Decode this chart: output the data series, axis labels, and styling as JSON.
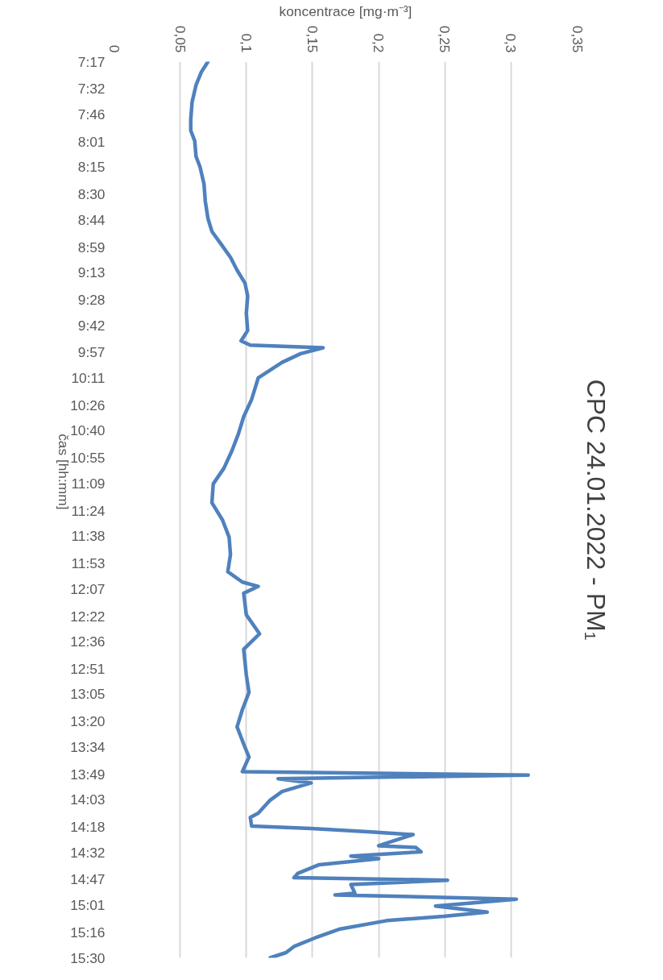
{
  "chart_data": {
    "type": "line",
    "title": "CPC 24.01.2022 - PM₁",
    "xlabel": "koncentrace [mg·m⁻³]",
    "ylabel": "čas [hh:mm]",
    "series": [
      {
        "color": "#4f81bd",
        "x": [
          0.071,
          0.066,
          0.062,
          0.059,
          0.058,
          0.058,
          0.061,
          0.062,
          0.065,
          0.068,
          0.069,
          0.071,
          0.074,
          0.081,
          0.088,
          0.093,
          0.099,
          0.101,
          0.1,
          0.101,
          0.096,
          0.103,
          0.158,
          0.141,
          0.127,
          0.109,
          0.104,
          0.098,
          0.094,
          0.089,
          0.083,
          0.075,
          0.074,
          0.082,
          0.087,
          0.088,
          0.086,
          0.097,
          0.109,
          0.098,
          0.1,
          0.11,
          0.098,
          0.1,
          0.102,
          0.097,
          0.093,
          0.098,
          0.102,
          0.097,
          0.313,
          0.124,
          0.149,
          0.127,
          0.118,
          0.109,
          0.103,
          0.104,
          0.149,
          0.194,
          0.226,
          0.2,
          0.228,
          0.232,
          0.179,
          0.2,
          0.155,
          0.139,
          0.136,
          0.252,
          0.179,
          0.182,
          0.167,
          0.304,
          0.243,
          0.282,
          0.249,
          0.206,
          0.17,
          0.152,
          0.136,
          0.13,
          0.118
        ],
        "values": [
          7.283,
          7.378,
          7.497,
          7.655,
          7.813,
          7.915,
          8.01,
          8.153,
          8.247,
          8.405,
          8.563,
          8.721,
          8.84,
          8.958,
          9.077,
          9.195,
          9.314,
          9.432,
          9.59,
          9.748,
          9.843,
          9.882,
          9.906,
          9.961,
          10.04,
          10.182,
          10.38,
          10.538,
          10.696,
          10.854,
          11.012,
          11.154,
          11.328,
          11.486,
          11.644,
          11.802,
          11.96,
          12.055,
          12.094,
          12.157,
          12.355,
          12.529,
          12.671,
          12.908,
          13.066,
          13.224,
          13.382,
          13.54,
          13.659,
          13.793,
          13.825,
          13.857,
          13.896,
          13.975,
          14.054,
          14.173,
          14.213,
          14.292,
          14.314,
          14.346,
          14.37,
          14.472,
          14.488,
          14.528,
          14.567,
          14.591,
          14.646,
          14.725,
          14.765,
          14.788,
          14.828,
          14.907,
          14.923,
          14.962,
          15.025,
          15.08,
          15.12,
          15.159,
          15.238,
          15.317,
          15.396,
          15.452,
          15.5
        ]
      }
    ],
    "ylim": [
      15.5,
      7.283
    ],
    "yticks": [
      {
        "value": 7.283,
        "label": "7:17"
      },
      {
        "value": 7.533,
        "label": "7:32"
      },
      {
        "value": 7.767,
        "label": "7:46"
      },
      {
        "value": 8.017,
        "label": "8:01"
      },
      {
        "value": 8.25,
        "label": "8:15"
      },
      {
        "value": 8.5,
        "label": "8:30"
      },
      {
        "value": 8.733,
        "label": "8:44"
      },
      {
        "value": 8.983,
        "label": "8:59"
      },
      {
        "value": 9.217,
        "label": "9:13"
      },
      {
        "value": 9.467,
        "label": "9:28"
      },
      {
        "value": 9.7,
        "label": "9:42"
      },
      {
        "value": 9.95,
        "label": "9:57"
      },
      {
        "value": 10.183,
        "label": "10:11"
      },
      {
        "value": 10.433,
        "label": "10:26"
      },
      {
        "value": 10.667,
        "label": "10:40"
      },
      {
        "value": 10.917,
        "label": "10:55"
      },
      {
        "value": 11.15,
        "label": "11:09"
      },
      {
        "value": 11.4,
        "label": "11:24"
      },
      {
        "value": 11.633,
        "label": "11:38"
      },
      {
        "value": 11.883,
        "label": "11:53"
      },
      {
        "value": 12.117,
        "label": "12:07"
      },
      {
        "value": 12.367,
        "label": "12:22"
      },
      {
        "value": 12.6,
        "label": "12:36"
      },
      {
        "value": 12.85,
        "label": "12:51"
      },
      {
        "value": 13.083,
        "label": "13:05"
      },
      {
        "value": 13.333,
        "label": "13:20"
      },
      {
        "value": 13.567,
        "label": "13:34"
      },
      {
        "value": 13.817,
        "label": "13:49"
      },
      {
        "value": 14.05,
        "label": "14:03"
      },
      {
        "value": 14.3,
        "label": "14:18"
      },
      {
        "value": 14.533,
        "label": "14:32"
      },
      {
        "value": 14.783,
        "label": "14:47"
      },
      {
        "value": 15.017,
        "label": "15:01"
      },
      {
        "value": 15.267,
        "label": "15:16"
      },
      {
        "value": 15.5,
        "label": "15:30"
      }
    ],
    "xlim": [
      0,
      0.35
    ],
    "xticks": [
      {
        "value": 0,
        "label": "0"
      },
      {
        "value": 0.05,
        "label": "0,05"
      },
      {
        "value": 0.1,
        "label": "0,1"
      },
      {
        "value": 0.15,
        "label": "0,15"
      },
      {
        "value": 0.2,
        "label": "0,2"
      },
      {
        "value": 0.25,
        "label": "0,25"
      },
      {
        "value": 0.3,
        "label": "0,3"
      },
      {
        "value": 0.35,
        "label": "0,35"
      }
    ],
    "grid": "x",
    "line_style": "solid"
  }
}
